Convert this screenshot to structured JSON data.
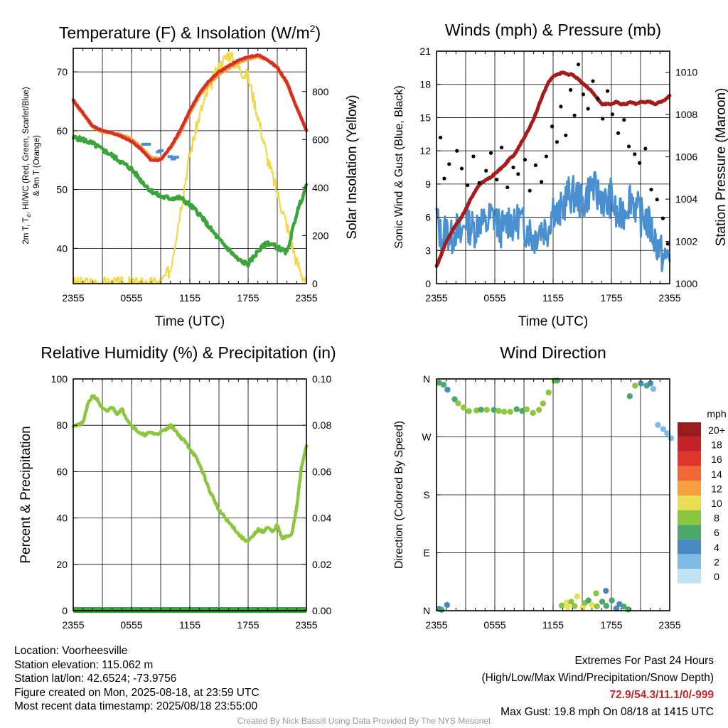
{
  "chart_data": [
    {
      "type": "line",
      "title": "Temperature (F) & Insolation (W/m²)",
      "xlabel": "Time (UTC)",
      "ylabel": "2m T, Td, HI/WC (Red, Green, Scarlet/Blue) & 9m T (Orange)",
      "ylabel_right": "Solar Insolation (Yellow)",
      "x_ticks": [
        "2355",
        "0555",
        "1155",
        "1755",
        "2355"
      ],
      "ylim": [
        34,
        74
      ],
      "y_ticks": [
        40,
        50,
        60,
        70
      ],
      "ylim_right": [
        0,
        980
      ],
      "y_ticks_right": [
        0,
        200,
        400,
        600,
        800
      ],
      "grid": true,
      "series": [
        {
          "key": "temp_2m",
          "color": "#d62f26",
          "axis": "left",
          "x": [
            0,
            1,
            2,
            3,
            4,
            5,
            6,
            7,
            8,
            9,
            10,
            11,
            12,
            13,
            14,
            15,
            16,
            17,
            18,
            19,
            20,
            21,
            22,
            23,
            24
          ],
          "values": [
            65.2,
            63.0,
            60.8,
            60.0,
            59.6,
            59.0,
            58.2,
            56.8,
            55.0,
            55.0,
            57.2,
            60.0,
            63.4,
            66.4,
            68.5,
            70.0,
            71.0,
            72.0,
            72.5,
            72.9,
            72.0,
            70.8,
            68.2,
            64.0,
            60.1
          ]
        },
        {
          "key": "temp_9m",
          "color": "#f3a23a",
          "axis": "left",
          "x": [
            0,
            1,
            2,
            3,
            4,
            5,
            6,
            7,
            8,
            9,
            10,
            11,
            12,
            13,
            14,
            15,
            16,
            17,
            18,
            19,
            20,
            21,
            22,
            23,
            24
          ],
          "values": [
            65.0,
            62.8,
            60.6,
            59.8,
            59.6,
            59.3,
            58.6,
            57.2,
            55.4,
            55.2,
            57.0,
            59.6,
            63.0,
            66.0,
            68.0,
            69.6,
            70.6,
            71.6,
            72.2,
            72.6,
            72.0,
            70.6,
            68.0,
            63.8,
            60.0
          ]
        },
        {
          "key": "dewpoint",
          "color": "#3aa53a",
          "axis": "left",
          "x": [
            0,
            1,
            2,
            3,
            4,
            5,
            6,
            7,
            8,
            9,
            10,
            11,
            12,
            13,
            14,
            15,
            16,
            17,
            18,
            19,
            20,
            21,
            22,
            23,
            24
          ],
          "values": [
            58.8,
            58.5,
            57.8,
            56.8,
            55.8,
            54.6,
            53.5,
            51.5,
            49.8,
            48.8,
            48.5,
            48.6,
            47.4,
            45.8,
            43.6,
            41.5,
            39.8,
            38.0,
            37.3,
            39.5,
            41.0,
            40.2,
            39.2,
            46.0,
            50.6
          ]
        },
        {
          "key": "windchill",
          "color": "#4a90d0",
          "axis": "left",
          "x": [
            7.3,
            7.5,
            7.7,
            8.8,
            9.0,
            10.0,
            10.3,
            10.6
          ],
          "values": [
            57.7,
            57.7,
            57.7,
            56.4,
            56.6,
            55.6,
            55.2,
            55.5
          ]
        },
        {
          "key": "insolation",
          "color": "#f0d84a",
          "axis": "right",
          "x": [
            0,
            1,
            2,
            3,
            4,
            5,
            6,
            7,
            8,
            9,
            10,
            11,
            12,
            13,
            14,
            15,
            16,
            17,
            18,
            19,
            20,
            21,
            22,
            23,
            24
          ],
          "values": [
            0,
            0,
            0,
            0,
            0,
            0,
            0,
            0,
            0,
            0,
            60,
            300,
            540,
            700,
            820,
            900,
            960,
            900,
            860,
            700,
            520,
            380,
            240,
            90,
            0
          ]
        }
      ]
    },
    {
      "type": "scatter",
      "title": "Winds (mph) & Pressure (mb)",
      "xlabel": "Time (UTC)",
      "ylabel": "Sonic Wind & Gust (Blue, Black)",
      "ylabel_right": "Station Pressure (Maroon)",
      "x_ticks": [
        "2355",
        "0555",
        "1155",
        "1755",
        "2355"
      ],
      "ylim": [
        0,
        21
      ],
      "y_ticks": [
        0,
        3,
        6,
        9,
        12,
        15,
        18,
        21
      ],
      "ylim_right": [
        1000,
        1011
      ],
      "y_ticks_right": [
        1000,
        1002,
        1004,
        1006,
        1008,
        1010
      ],
      "grid": true,
      "series": [
        {
          "key": "sonic_wind",
          "color": "#4a90d0",
          "axis": "left",
          "x": [
            0,
            0.5,
            1,
            1.5,
            2,
            2.5,
            3,
            3.5,
            4,
            4.5,
            5,
            5.5,
            6,
            6.5,
            7,
            7.5,
            8,
            8.5,
            9,
            9.5,
            10,
            10.5,
            11,
            11.5,
            12,
            12.5,
            13,
            13.5,
            14,
            14.5,
            15,
            15.5,
            16,
            16.5,
            17,
            17.5,
            18,
            18.5,
            19,
            19.5,
            20,
            20.5,
            21,
            21.5,
            22,
            22.5,
            23,
            23.5,
            24
          ],
          "values": [
            6,
            4,
            5,
            4,
            5,
            4,
            6,
            5,
            5,
            6,
            5,
            6,
            6,
            5,
            5,
            6,
            5,
            6,
            5,
            5,
            4,
            5,
            5,
            5,
            7,
            6,
            7,
            8,
            8,
            8,
            7,
            8,
            9,
            8,
            8,
            7,
            8,
            6,
            6,
            7,
            8,
            7,
            6,
            6,
            5,
            4,
            3,
            2,
            3
          ]
        },
        {
          "key": "gust",
          "color": "#000000",
          "axis": "left",
          "x": [
            0.4,
            0.8,
            1.3,
            2.1,
            2.6,
            3.2,
            3.8,
            4.4,
            5.1,
            5.6,
            6.2,
            6.7,
            7.3,
            7.9,
            8.4,
            9.1,
            9.6,
            10.2,
            10.8,
            11.3,
            11.9,
            12.4,
            12.8,
            13.3,
            13.8,
            14.2,
            14.6,
            15.1,
            15.6,
            16.1,
            16.6,
            17.1,
            17.6,
            18.1,
            18.7,
            19.3,
            19.8,
            20.4,
            20.9,
            21.5,
            22.1,
            22.7,
            23.3,
            23.8
          ],
          "values": [
            13.2,
            9.5,
            10.8,
            12.0,
            10.4,
            8.9,
            11.5,
            9.1,
            10.2,
            11.8,
            9.4,
            12.3,
            8.7,
            10.5,
            9.9,
            11.2,
            8.4,
            10.7,
            9.2,
            11.5,
            14.2,
            12.8,
            16.0,
            13.4,
            17.5,
            15.2,
            19.8,
            17.1,
            15.8,
            18.3,
            16.7,
            14.9,
            17.4,
            15.3,
            13.6,
            14.8,
            12.4,
            11.7,
            10.9,
            12.2,
            8.5,
            7.6,
            5.9,
            3.6
          ]
        },
        {
          "key": "pressure",
          "color": "#a51c1c",
          "axis": "right",
          "x": [
            0,
            0.5,
            1,
            1.5,
            2,
            2.5,
            3,
            3.5,
            4,
            4.5,
            5,
            5.5,
            6,
            6.5,
            7,
            7.5,
            8,
            8.5,
            9,
            9.5,
            10,
            10.5,
            11,
            11.5,
            12,
            12.5,
            13,
            13.5,
            14,
            14.5,
            15,
            15.5,
            16,
            16.5,
            17,
            17.5,
            18,
            18.5,
            19,
            19.5,
            20,
            20.5,
            21,
            21.5,
            22,
            22.5,
            23,
            23.5,
            24
          ],
          "values": [
            1000.8,
            1001.4,
            1002.0,
            1002.4,
            1002.8,
            1003.1,
            1003.5,
            1004.0,
            1004.4,
            1004.7,
            1004.9,
            1005.0,
            1005.2,
            1005.4,
            1005.6,
            1005.9,
            1006.1,
            1006.5,
            1006.9,
            1007.3,
            1007.8,
            1008.4,
            1009.0,
            1009.5,
            1009.8,
            1009.9,
            1010.0,
            1009.9,
            1009.9,
            1009.7,
            1009.5,
            1009.3,
            1009.1,
            1008.8,
            1008.5,
            1008.5,
            1008.5,
            1008.6,
            1008.5,
            1008.5,
            1008.6,
            1008.5,
            1008.6,
            1008.6,
            1008.6,
            1008.5,
            1008.6,
            1008.7,
            1008.9
          ]
        }
      ]
    },
    {
      "type": "line",
      "title": "Relative Humidity (%) & Precipitation (in)",
      "ylabel": "Percent & Precipitation",
      "x_ticks": [
        "2355",
        "0555",
        "1155",
        "1755",
        "2355"
      ],
      "ylim": [
        0,
        100
      ],
      "y_ticks": [
        0,
        20,
        40,
        60,
        80,
        100
      ],
      "ylim_right": [
        0,
        0.1
      ],
      "y_ticks_right": [
        "0.00",
        "0.02",
        "0.04",
        "0.06",
        "0.08",
        "0.10"
      ],
      "grid": true,
      "series": [
        {
          "key": "rh",
          "color": "#8cc63f",
          "axis": "left",
          "x": [
            0,
            0.5,
            1,
            1.5,
            2,
            2.5,
            3,
            3.5,
            4,
            4.5,
            5,
            5.5,
            6,
            6.5,
            7,
            7.5,
            8,
            8.5,
            9,
            9.5,
            10,
            10.5,
            11,
            11.5,
            12,
            12.5,
            13,
            13.5,
            14,
            14.5,
            15,
            15.5,
            16,
            16.5,
            17,
            17.5,
            18,
            18.5,
            19,
            19.5,
            20,
            20.5,
            21,
            21.5,
            22,
            22.5,
            23,
            23.5,
            24
          ],
          "values": [
            80,
            80,
            81,
            89,
            93,
            91,
            87,
            86,
            88,
            85,
            87,
            83,
            80,
            78,
            76,
            76,
            77,
            76,
            77,
            78,
            80,
            78,
            75,
            73,
            70,
            67,
            63,
            58,
            52,
            48,
            43,
            41,
            38,
            36,
            33,
            31,
            30,
            32,
            35,
            34,
            36,
            34,
            37,
            31,
            32,
            33,
            45,
            62,
            71
          ]
        },
        {
          "key": "precip",
          "color": "#3aa53a",
          "axis": "right",
          "x": [
            0,
            24
          ],
          "values": [
            0,
            0
          ]
        }
      ]
    },
    {
      "type": "scatter",
      "title": "Wind Direction",
      "ylabel": "Direction (Colored By Speed)",
      "x_ticks": [
        "2355",
        "0555",
        "1155",
        "1755",
        "2355"
      ],
      "y_ticks": [
        "N",
        "E",
        "S",
        "W",
        "N"
      ],
      "ylim": [
        0,
        360
      ],
      "grid": true,
      "colorbar": {
        "unit": "mph",
        "labels": [
          "20+",
          "18",
          "16",
          "14",
          "12",
          "10",
          "8",
          "6",
          "4",
          "2",
          "0"
        ],
        "colors": [
          "#9b1c20",
          "#c42227",
          "#e1362b",
          "#f16734",
          "#f7a040",
          "#e8df52",
          "#8cc63f",
          "#4aa86a",
          "#4888c3",
          "#7fbbe5",
          "#bfe3f5"
        ]
      },
      "series": [
        {
          "key": "direction",
          "x": [
            0.3,
            0.7,
            1.2,
            1.8,
            2.3,
            2.9,
            3.4,
            4.0,
            4.6,
            5.2,
            5.8,
            6.4,
            7.0,
            7.6,
            8.2,
            8.8,
            9.4,
            10.0,
            10.6,
            11.1,
            11.5,
            12.0,
            12.4,
            13.0,
            13.3,
            13.6,
            14.0,
            14.3,
            14.6,
            15.0,
            15.3,
            15.6,
            16.0,
            16.3,
            16.6,
            17.0,
            17.3,
            17.6,
            18.0,
            18.4,
            18.8,
            19.2,
            19.6,
            20.0,
            20.5,
            21.0,
            21.5,
            22.0,
            22.4,
            22.8,
            23.2,
            23.6,
            24.0,
            0.2,
            0.6,
            1.0
          ],
          "values": [
            356,
            353,
            345,
            330,
            320,
            314,
            310,
            313,
            310,
            311,
            310,
            312,
            309,
            310,
            311,
            310,
            312,
            309,
            312,
            320,
            340,
            355,
            357,
            10,
            12,
            6,
            15,
            8,
            20,
            5,
            12,
            18,
            10,
            25,
            8,
            14,
            32,
            9,
            15,
            5,
            10,
            6,
            3,
            335,
            348,
            354,
            350,
            355,
            343,
            290,
            280,
            275,
            270,
            4,
            2,
            8
          ],
          "speeds": [
            5,
            6,
            4,
            6,
            7,
            7,
            7,
            8,
            6,
            7,
            6,
            7,
            8,
            7,
            6,
            6,
            7,
            7,
            8,
            7,
            8,
            7,
            6,
            8,
            9,
            10,
            7,
            8,
            9,
            10,
            8,
            6,
            9,
            8,
            7,
            5,
            4,
            6,
            5,
            4,
            4,
            6,
            5,
            6,
            7,
            4,
            5,
            3,
            2,
            1,
            2,
            1,
            2,
            4,
            5,
            4
          ]
        }
      ]
    }
  ],
  "axis_titles": {
    "time": "Time (UTC)"
  },
  "info": {
    "location": "Location: Voorheesville",
    "elevation": "Station elevation: 115.062 m",
    "latlon": "Station lat/lon: 42.6524; -73.9756",
    "created": "Figure created on Mon, 2025-08-18, at 23:59 UTC",
    "recent": "Most recent data timestamp: 2025/08/18 23:55:00"
  },
  "extremes": {
    "title": "Extremes For Past 24 Hours",
    "subtitle": "(High/Low/Max Wind/Precipitation/Snow Depth)",
    "values": "72.9/54.3/11.1/0/-999",
    "gust": "Max Gust: 19.8 mph On 08/18 at 1415 UTC"
  },
  "credit": "Created By Nick Bassill Using Data Provided By The NYS Mesonet"
}
